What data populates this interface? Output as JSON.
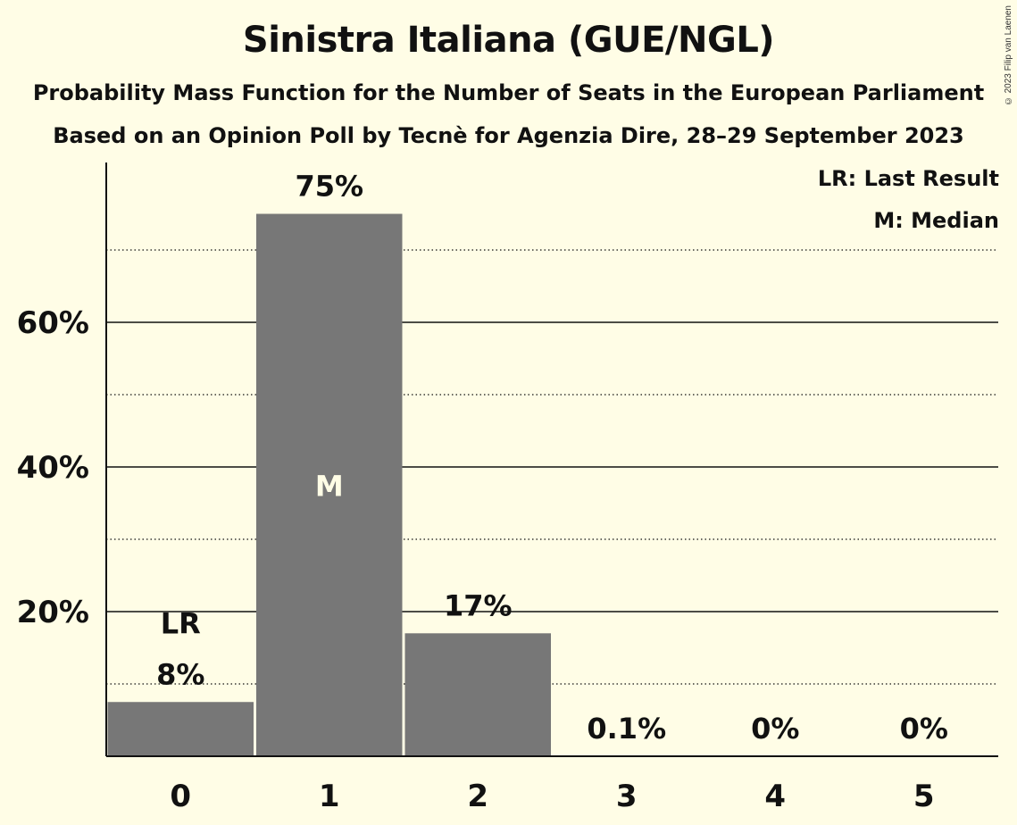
{
  "header": {
    "title": "Sinistra Italiana (GUE/NGL)",
    "subtitle": "Probability Mass Function for the Number of Seats in the European Parliament",
    "source": "Based on an Opinion Poll by Tecnè for Agenzia Dire, 28–29 September 2023",
    "copyright": "© 2023 Filip van Laenen"
  },
  "legend": {
    "last_result": "LR: Last Result",
    "median": "M: Median"
  },
  "chart_data": {
    "type": "bar",
    "categories": [
      "0",
      "1",
      "2",
      "3",
      "4",
      "5"
    ],
    "values": [
      7.5,
      75,
      17,
      0.1,
      0,
      0
    ],
    "data_labels": [
      "8%",
      "75%",
      "17%",
      "0.1%",
      "0%",
      "0%"
    ],
    "markers": {
      "0": "LR",
      "1": "M"
    },
    "ylim": [
      0,
      82
    ],
    "yticks_major": [
      20,
      40,
      60
    ],
    "ytick_labels": [
      "20%",
      "40%",
      "60%"
    ],
    "yticks_minor": [
      10,
      30,
      50,
      70
    ],
    "bar_color": "#777777",
    "background": "#fffde6",
    "grid": true
  }
}
